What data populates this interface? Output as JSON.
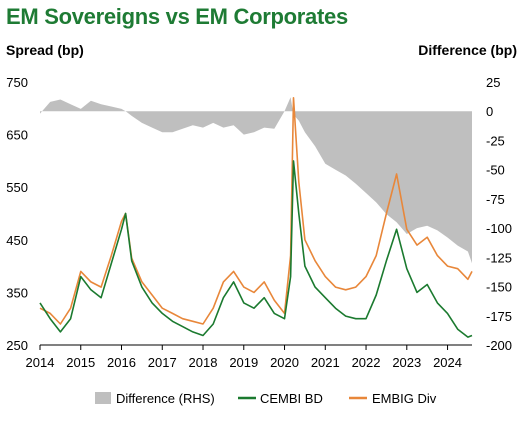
{
  "chart_data": {
    "type": "line",
    "title": "EM Sovereigns vs EM Corporates",
    "ylabel_left": "Spread (bp)",
    "ylabel_right": "Difference (bp)",
    "xlim": [
      2014,
      2024.6
    ],
    "ylim_left": [
      250,
      750
    ],
    "ylim_right": [
      -200,
      25
    ],
    "x_ticks": [
      2014,
      2015,
      2016,
      2017,
      2018,
      2019,
      2020,
      2021,
      2022,
      2023,
      2024
    ],
    "y_ticks_left": [
      250,
      350,
      450,
      550,
      650,
      750
    ],
    "y_ticks_right": [
      -200,
      -175,
      -150,
      -125,
      -100,
      -75,
      -50,
      -25,
      0,
      25
    ],
    "legend_position": "bottom",
    "colors": {
      "difference": "#bfbfbf",
      "cembi": "#1b7a2f",
      "embig": "#e8873a"
    },
    "x": [
      2014.0,
      2014.25,
      2014.5,
      2014.75,
      2015.0,
      2015.25,
      2015.5,
      2015.75,
      2016.0,
      2016.1,
      2016.25,
      2016.5,
      2016.75,
      2017.0,
      2017.25,
      2017.5,
      2017.75,
      2018.0,
      2018.25,
      2018.5,
      2018.75,
      2019.0,
      2019.25,
      2019.5,
      2019.75,
      2020.0,
      2020.15,
      2020.22,
      2020.35,
      2020.5,
      2020.75,
      2021.0,
      2021.25,
      2021.5,
      2021.75,
      2022.0,
      2022.25,
      2022.5,
      2022.75,
      2023.0,
      2023.25,
      2023.5,
      2023.75,
      2024.0,
      2024.25,
      2024.5,
      2024.6
    ],
    "series": [
      {
        "name": "Difference (RHS)",
        "axis": "right",
        "kind": "area",
        "values": [
          -2,
          8,
          10,
          6,
          2,
          9,
          6,
          4,
          2,
          0,
          -4,
          -10,
          -14,
          -18,
          -18,
          -15,
          -12,
          -14,
          -10,
          -14,
          -12,
          -20,
          -18,
          -14,
          -15,
          0,
          12,
          -3,
          -8,
          -18,
          -30,
          -45,
          -50,
          -55,
          -62,
          -70,
          -78,
          -88,
          -95,
          -105,
          -100,
          -98,
          -102,
          -108,
          -115,
          -120,
          -130
        ]
      },
      {
        "name": "CEMBI BD",
        "axis": "left",
        "kind": "line",
        "values": [
          330,
          300,
          275,
          300,
          380,
          355,
          340,
          405,
          470,
          500,
          410,
          360,
          330,
          310,
          295,
          285,
          275,
          268,
          290,
          340,
          370,
          330,
          320,
          340,
          310,
          300,
          380,
          600,
          500,
          400,
          360,
          340,
          320,
          305,
          300,
          300,
          345,
          410,
          470,
          395,
          350,
          365,
          330,
          310,
          280,
          265,
          268
        ]
      },
      {
        "name": "EMBIG Div",
        "axis": "left",
        "kind": "line",
        "values": [
          320,
          310,
          290,
          320,
          390,
          370,
          360,
          420,
          485,
          500,
          415,
          370,
          345,
          320,
          310,
          300,
          295,
          290,
          320,
          370,
          390,
          360,
          350,
          370,
          335,
          310,
          420,
          720,
          560,
          450,
          410,
          380,
          360,
          355,
          360,
          380,
          420,
          500,
          575,
          470,
          440,
          455,
          420,
          400,
          395,
          375,
          390
        ]
      }
    ]
  }
}
